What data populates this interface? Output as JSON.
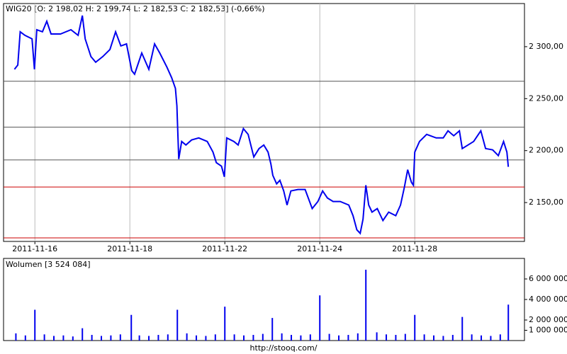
{
  "chart_data": [
    {
      "type": "line",
      "title": "WIG20 [O: 2 198,02  H: 2 199,74  L: 2 182,53  C: 2 182,53] (-0,66%)",
      "xlim": [
        0.34,
        11.31
      ],
      "xticks": [
        {
          "value": 1,
          "label": "2011-11-16"
        },
        {
          "value": 3,
          "label": "2011-11-18"
        },
        {
          "value": 5,
          "label": "2011-11-22"
        },
        {
          "value": 7,
          "label": "2011-11-24"
        },
        {
          "value": 9,
          "label": "2011-11-28"
        }
      ],
      "ylim": [
        2112.6,
        2341.5
      ],
      "yticks": [
        {
          "value": 2150,
          "label": "2 150,00"
        },
        {
          "value": 2200,
          "label": "2 200,00"
        },
        {
          "value": 2250,
          "label": "2 250,00"
        },
        {
          "value": 2300,
          "label": "2 300,00"
        }
      ],
      "grid": "x",
      "levels": [
        {
          "value": 2266.7,
          "color": "#555555"
        },
        {
          "value": 2222.5,
          "color": "#555555"
        },
        {
          "value": 2191.0,
          "color": "#555555"
        },
        {
          "value": 2165.0,
          "color": "#cc0000"
        },
        {
          "value": 2116.0,
          "color": "#cc0000"
        }
      ],
      "series": [
        {
          "name": "WIG20",
          "color": "#0000ee",
          "x": [
            0.57,
            0.64,
            0.69,
            0.79,
            0.94,
            0.99,
            1.04,
            1.16,
            1.25,
            1.34,
            1.54,
            1.76,
            1.91,
            2.0,
            2.06,
            2.18,
            2.28,
            2.43,
            2.58,
            2.7,
            2.81,
            2.93,
            3.04,
            3.1,
            3.25,
            3.4,
            3.52,
            3.63,
            3.78,
            3.88,
            3.96,
            3.99,
            4.0,
            4.03,
            4.09,
            4.18,
            4.3,
            4.45,
            4.63,
            4.75,
            4.82,
            4.93,
            4.99,
            5.04,
            5.19,
            5.28,
            5.39,
            5.49,
            5.61,
            5.72,
            5.82,
            5.91,
            5.97,
            6.01,
            6.09,
            6.16,
            6.24,
            6.31,
            6.39,
            6.54,
            6.69,
            6.84,
            6.96,
            7.06,
            7.16,
            7.28,
            7.43,
            7.61,
            7.7,
            7.78,
            7.85,
            7.91,
            7.97,
            8.03,
            8.1,
            8.21,
            8.33,
            8.45,
            8.6,
            8.7,
            8.78,
            8.85,
            8.93,
            8.97,
            9.0,
            9.1,
            9.25,
            9.45,
            9.6,
            9.7,
            9.82,
            9.94,
            10.0,
            10.12,
            10.24,
            10.39,
            10.49,
            10.64,
            10.76,
            10.87,
            10.94,
            10.97
          ],
          "values": [
            2278.2,
            2282.3,
            2314.3,
            2310.9,
            2307.5,
            2278.2,
            2316.3,
            2314.3,
            2324.5,
            2312.2,
            2312.2,
            2316.3,
            2310.9,
            2329.9,
            2307.5,
            2290.5,
            2285.0,
            2290.5,
            2297.3,
            2314.3,
            2300.7,
            2302.7,
            2276.9,
            2273.5,
            2293.9,
            2278.2,
            2302.7,
            2293.9,
            2280.3,
            2270.1,
            2259.9,
            2242.9,
            2230.6,
            2191.8,
            2208.8,
            2205.4,
            2210.2,
            2212.2,
            2208.8,
            2198.6,
            2188.4,
            2185.0,
            2174.8,
            2212.2,
            2208.8,
            2205.4,
            2221.1,
            2215.6,
            2193.9,
            2202.0,
            2205.4,
            2198.6,
            2187.1,
            2176.2,
            2168.0,
            2171.4,
            2161.2,
            2147.6,
            2161.2,
            2162.6,
            2162.6,
            2144.2,
            2151.0,
            2161.2,
            2154.4,
            2151.0,
            2151.0,
            2147.6,
            2137.4,
            2123.8,
            2120.4,
            2134.0,
            2166.7,
            2147.6,
            2140.8,
            2144.2,
            2132.7,
            2140.8,
            2137.4,
            2147.6,
            2164.6,
            2181.6,
            2169.4,
            2166.7,
            2198.6,
            2208.8,
            2215.6,
            2212.2,
            2212.2,
            2219.0,
            2214.3,
            2219.0,
            2202.0,
            2205.4,
            2208.8,
            2219.0,
            2202.0,
            2200.7,
            2195.2,
            2208.8,
            2198.6,
            2184.4
          ]
        }
      ]
    },
    {
      "type": "bar",
      "title": "Wolumen [3 524 084]",
      "footer": "http://stooq.com/",
      "xlim": [
        0.34,
        11.31
      ],
      "ylim": [
        0,
        8000000
      ],
      "yticks": [
        {
          "value": 1000000,
          "label": "1 000 000"
        },
        {
          "value": 2000000,
          "label": "2 000 000"
        },
        {
          "value": 4000000,
          "label": "4 000 000"
        },
        {
          "value": 6000000,
          "label": "6 000 000"
        }
      ],
      "series": [
        {
          "name": "Wolumen",
          "color": "#0000ee",
          "x": [
            0.6,
            0.8,
            1.0,
            1.2,
            1.4,
            1.6,
            1.8,
            2.0,
            2.2,
            2.4,
            2.6,
            2.8,
            3.03,
            3.2,
            3.4,
            3.6,
            3.8,
            4.0,
            4.2,
            4.4,
            4.6,
            4.8,
            5.0,
            5.2,
            5.4,
            5.6,
            5.8,
            6.0,
            6.2,
            6.4,
            6.6,
            6.8,
            7.0,
            7.2,
            7.4,
            7.6,
            7.8,
            7.97,
            8.2,
            8.4,
            8.6,
            8.8,
            9.0,
            9.2,
            9.4,
            9.6,
            9.8,
            10.0,
            10.2,
            10.4,
            10.6,
            10.8,
            10.97
          ],
          "values": [
            700000,
            500000,
            3000000,
            600000,
            450000,
            500000,
            400000,
            1200000,
            550000,
            450000,
            500000,
            600000,
            2500000,
            500000,
            450000,
            550000,
            600000,
            3000000,
            700000,
            500000,
            450000,
            600000,
            3300000,
            600000,
            500000,
            550000,
            650000,
            2200000,
            700000,
            550000,
            500000,
            600000,
            4400000,
            650000,
            500000,
            550000,
            700000,
            6900000,
            800000,
            600000,
            550000,
            650000,
            2500000,
            600000,
            500000,
            450000,
            550000,
            2300000,
            600000,
            500000,
            450000,
            600000,
            3500000
          ]
        }
      ]
    }
  ]
}
